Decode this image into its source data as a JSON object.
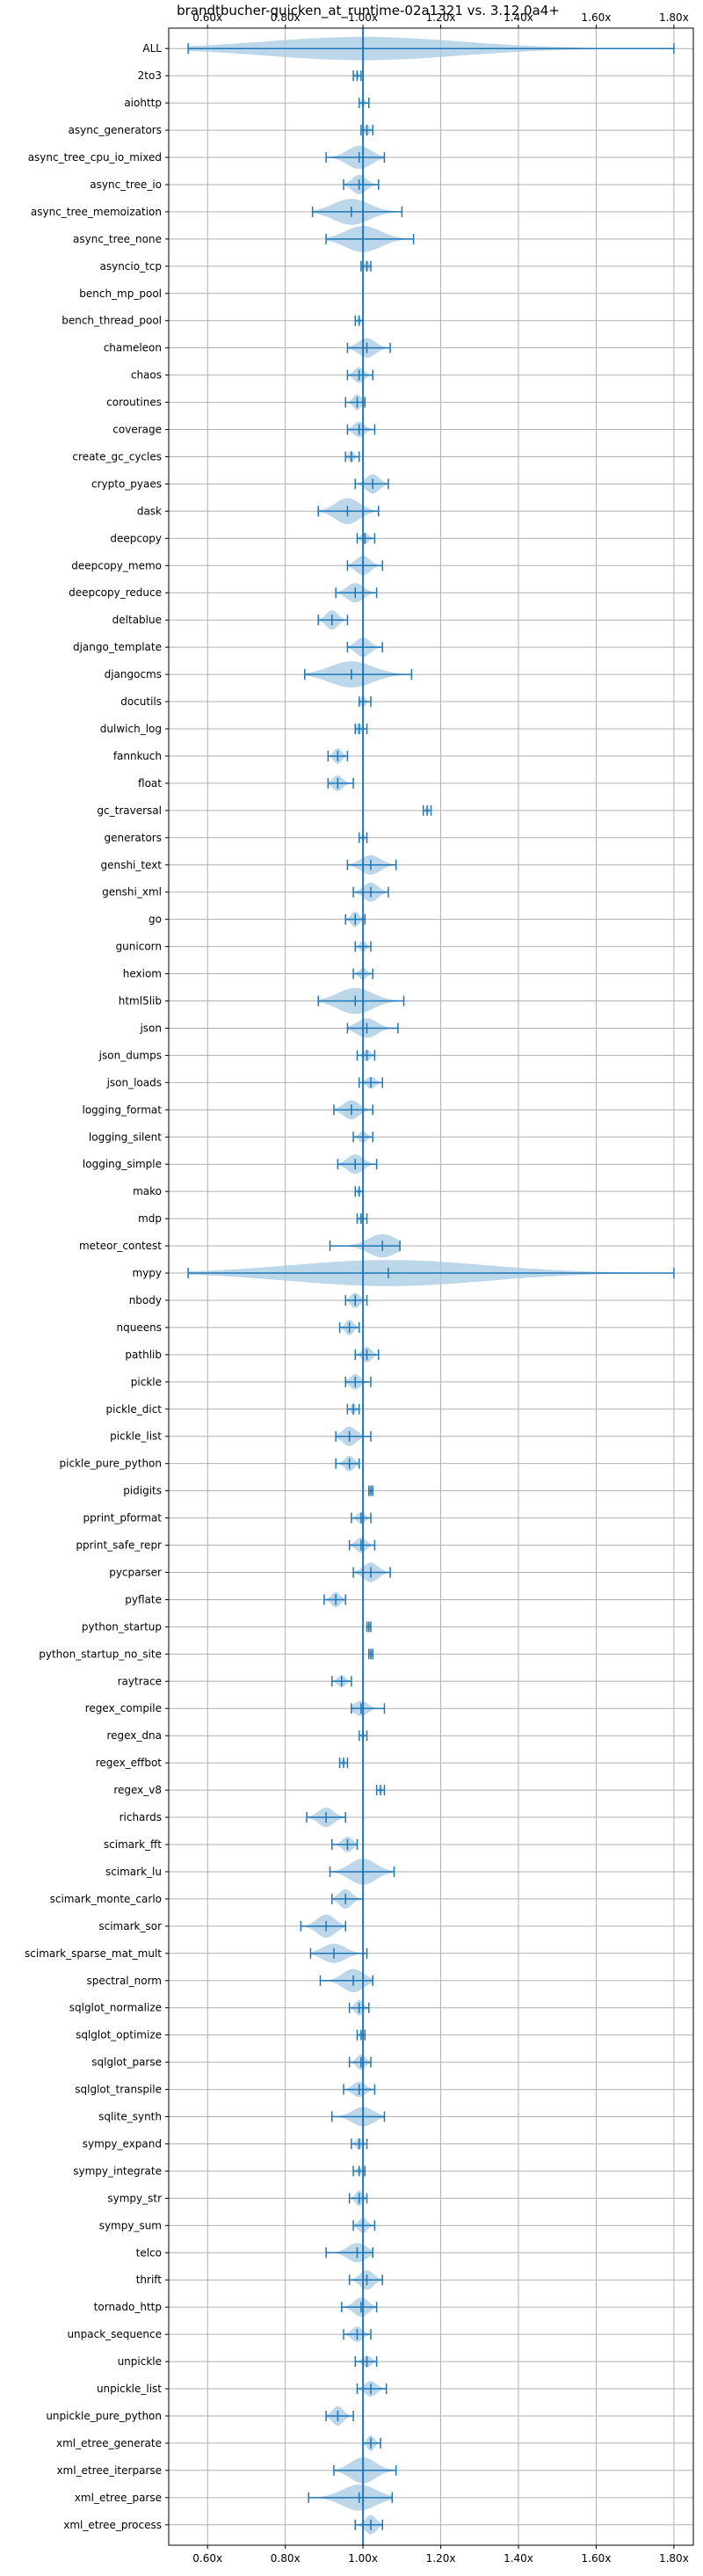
{
  "chart_data": {
    "type": "violin",
    "title": "brandtbucher-quicken_at_runtime-02a1321 vs. 3.12.0a4+",
    "xlabel": "",
    "ylabel": "",
    "xlim": [
      0.5,
      1.85
    ],
    "x_ticks": [
      0.6,
      0.8,
      1.0,
      1.2,
      1.4,
      1.6,
      1.8
    ],
    "x_tick_labels": [
      "0.60x",
      "0.80x",
      "1.00x",
      "1.20x",
      "1.40x",
      "1.60x",
      "1.80x"
    ],
    "reference_line": 1.0,
    "grid": true,
    "colors": {
      "fill": "#a6c8e3",
      "line": "#1f77b4",
      "grid": "#b0b0b0"
    },
    "benchmarks": [
      {
        "name": "ALL",
        "min": 0.55,
        "median": 1.0,
        "max": 1.8,
        "center": 1.0,
        "width": 0.06
      },
      {
        "name": "2to3",
        "min": 0.975,
        "median": 0.985,
        "max": 0.995,
        "center": 0.985,
        "width": 0.02
      },
      {
        "name": "aiohttp",
        "min": 0.99,
        "median": 1.0,
        "max": 1.015,
        "center": 1.0,
        "width": 0.02
      },
      {
        "name": "async_generators",
        "min": 0.995,
        "median": 1.01,
        "max": 1.025,
        "center": 1.01,
        "width": 0.03
      },
      {
        "name": "async_tree_cpu_io_mixed",
        "min": 0.905,
        "median": 0.99,
        "max": 1.055,
        "center": 0.99,
        "width": 0.06
      },
      {
        "name": "async_tree_io",
        "min": 0.95,
        "median": 0.99,
        "max": 1.04,
        "center": 0.99,
        "width": 0.05
      },
      {
        "name": "async_tree_memoization",
        "min": 0.87,
        "median": 0.97,
        "max": 1.1,
        "center": 0.97,
        "width": 0.08
      },
      {
        "name": "async_tree_none",
        "min": 0.905,
        "median": 1.0,
        "max": 1.13,
        "center": 1.0,
        "width": 0.09
      },
      {
        "name": "asyncio_tcp",
        "min": 0.995,
        "median": 1.01,
        "max": 1.02,
        "center": 1.01,
        "width": 0.03
      },
      {
        "name": "bench_mp_pool",
        "min": 1.0,
        "median": 1.0,
        "max": 1.0,
        "center": 1.0,
        "width": 0.0
      },
      {
        "name": "bench_thread_pool",
        "min": 0.98,
        "median": 0.99,
        "max": 1.0,
        "center": 0.99,
        "width": 0.02
      },
      {
        "name": "chameleon",
        "min": 0.96,
        "median": 1.01,
        "max": 1.07,
        "center": 1.01,
        "width": 0.05
      },
      {
        "name": "chaos",
        "min": 0.96,
        "median": 0.99,
        "max": 1.025,
        "center": 0.99,
        "width": 0.04
      },
      {
        "name": "coroutines",
        "min": 0.955,
        "median": 0.985,
        "max": 1.005,
        "center": 0.985,
        "width": 0.04
      },
      {
        "name": "coverage",
        "min": 0.96,
        "median": 0.99,
        "max": 1.03,
        "center": 0.99,
        "width": 0.04
      },
      {
        "name": "create_gc_cycles",
        "min": 0.955,
        "median": 0.97,
        "max": 0.99,
        "center": 0.97,
        "width": 0.03
      },
      {
        "name": "crypto_pyaes",
        "min": 0.98,
        "median": 1.025,
        "max": 1.065,
        "center": 1.025,
        "width": 0.05
      },
      {
        "name": "dask",
        "min": 0.885,
        "median": 0.96,
        "max": 1.04,
        "center": 0.96,
        "width": 0.07
      },
      {
        "name": "deepcopy",
        "min": 0.985,
        "median": 1.005,
        "max": 1.03,
        "center": 1.005,
        "width": 0.03
      },
      {
        "name": "deepcopy_memo",
        "min": 0.96,
        "median": 1.0,
        "max": 1.05,
        "center": 1.0,
        "width": 0.05
      },
      {
        "name": "deepcopy_reduce",
        "min": 0.93,
        "median": 0.98,
        "max": 1.035,
        "center": 0.98,
        "width": 0.05
      },
      {
        "name": "deltablue",
        "min": 0.885,
        "median": 0.92,
        "max": 0.96,
        "center": 0.92,
        "width": 0.05
      },
      {
        "name": "django_template",
        "min": 0.96,
        "median": 1.0,
        "max": 1.05,
        "center": 1.0,
        "width": 0.05
      },
      {
        "name": "djangocms",
        "min": 0.85,
        "median": 0.97,
        "max": 1.125,
        "center": 0.97,
        "width": 0.09
      },
      {
        "name": "docutils",
        "min": 0.99,
        "median": 1.0,
        "max": 1.02,
        "center": 1.0,
        "width": 0.03
      },
      {
        "name": "dulwich_log",
        "min": 0.98,
        "median": 0.99,
        "max": 1.01,
        "center": 0.99,
        "width": 0.03
      },
      {
        "name": "fannkuch",
        "min": 0.91,
        "median": 0.935,
        "max": 0.96,
        "center": 0.935,
        "width": 0.04
      },
      {
        "name": "float",
        "min": 0.91,
        "median": 0.935,
        "max": 0.975,
        "center": 0.935,
        "width": 0.04
      },
      {
        "name": "gc_traversal",
        "min": 1.155,
        "median": 1.165,
        "max": 1.175,
        "center": 1.165,
        "width": 0.02
      },
      {
        "name": "generators",
        "min": 0.99,
        "median": 1.0,
        "max": 1.01,
        "center": 1.0,
        "width": 0.02
      },
      {
        "name": "genshi_text",
        "min": 0.96,
        "median": 1.02,
        "max": 1.085,
        "center": 1.02,
        "width": 0.05
      },
      {
        "name": "genshi_xml",
        "min": 0.975,
        "median": 1.02,
        "max": 1.065,
        "center": 1.02,
        "width": 0.05
      },
      {
        "name": "go",
        "min": 0.955,
        "median": 0.98,
        "max": 1.005,
        "center": 0.98,
        "width": 0.04
      },
      {
        "name": "gunicorn",
        "min": 0.98,
        "median": 1.0,
        "max": 1.02,
        "center": 1.0,
        "width": 0.03
      },
      {
        "name": "hexiom",
        "min": 0.975,
        "median": 1.0,
        "max": 1.025,
        "center": 1.0,
        "width": 0.03
      },
      {
        "name": "html5lib",
        "min": 0.885,
        "median": 0.98,
        "max": 1.105,
        "center": 0.98,
        "width": 0.08
      },
      {
        "name": "json",
        "min": 0.96,
        "median": 1.01,
        "max": 1.09,
        "center": 1.01,
        "width": 0.05
      },
      {
        "name": "json_dumps",
        "min": 0.985,
        "median": 1.01,
        "max": 1.03,
        "center": 1.01,
        "width": 0.03
      },
      {
        "name": "json_loads",
        "min": 0.99,
        "median": 1.02,
        "max": 1.05,
        "center": 1.02,
        "width": 0.03
      },
      {
        "name": "logging_format",
        "min": 0.925,
        "median": 0.97,
        "max": 1.025,
        "center": 0.97,
        "width": 0.05
      },
      {
        "name": "logging_silent",
        "min": 0.975,
        "median": 1.0,
        "max": 1.025,
        "center": 1.0,
        "width": 0.03
      },
      {
        "name": "logging_simple",
        "min": 0.935,
        "median": 0.98,
        "max": 1.035,
        "center": 0.98,
        "width": 0.05
      },
      {
        "name": "mako",
        "min": 0.98,
        "median": 0.99,
        "max": 1.0,
        "center": 0.99,
        "width": 0.02
      },
      {
        "name": "mdp",
        "min": 0.985,
        "median": 0.995,
        "max": 1.01,
        "center": 0.995,
        "width": 0.02
      },
      {
        "name": "meteor_contest",
        "min": 0.915,
        "median": 1.05,
        "max": 1.095,
        "center": 1.05,
        "width": 0.06
      },
      {
        "name": "mypy",
        "min": 0.55,
        "median": 1.065,
        "max": 1.8,
        "center": 1.065,
        "width": 0.22
      },
      {
        "name": "nbody",
        "min": 0.955,
        "median": 0.98,
        "max": 1.01,
        "center": 0.98,
        "width": 0.04
      },
      {
        "name": "nqueens",
        "min": 0.94,
        "median": 0.965,
        "max": 0.99,
        "center": 0.965,
        "width": 0.04
      },
      {
        "name": "pathlib",
        "min": 0.98,
        "median": 1.01,
        "max": 1.04,
        "center": 1.01,
        "width": 0.04
      },
      {
        "name": "pickle",
        "min": 0.955,
        "median": 0.98,
        "max": 1.02,
        "center": 0.98,
        "width": 0.04
      },
      {
        "name": "pickle_dict",
        "min": 0.96,
        "median": 0.975,
        "max": 0.99,
        "center": 0.975,
        "width": 0.03
      },
      {
        "name": "pickle_list",
        "min": 0.93,
        "median": 0.965,
        "max": 1.02,
        "center": 0.965,
        "width": 0.05
      },
      {
        "name": "pickle_pure_python",
        "min": 0.93,
        "median": 0.965,
        "max": 0.99,
        "center": 0.965,
        "width": 0.04
      },
      {
        "name": "pidigits",
        "min": 1.015,
        "median": 1.02,
        "max": 1.025,
        "center": 1.02,
        "width": 0.01
      },
      {
        "name": "pprint_pformat",
        "min": 0.97,
        "median": 0.995,
        "max": 1.02,
        "center": 0.995,
        "width": 0.03
      },
      {
        "name": "pprint_safe_repr",
        "min": 0.965,
        "median": 0.995,
        "max": 1.03,
        "center": 0.995,
        "width": 0.04
      },
      {
        "name": "pycparser",
        "min": 0.975,
        "median": 1.02,
        "max": 1.07,
        "center": 1.02,
        "width": 0.05
      },
      {
        "name": "pyflate",
        "min": 0.9,
        "median": 0.93,
        "max": 0.955,
        "center": 0.93,
        "width": 0.04
      },
      {
        "name": "python_startup",
        "min": 1.01,
        "median": 1.015,
        "max": 1.02,
        "center": 1.015,
        "width": 0.01
      },
      {
        "name": "python_startup_no_site",
        "min": 1.015,
        "median": 1.02,
        "max": 1.025,
        "center": 1.02,
        "width": 0.01
      },
      {
        "name": "raytrace",
        "min": 0.92,
        "median": 0.945,
        "max": 0.97,
        "center": 0.945,
        "width": 0.03
      },
      {
        "name": "regex_compile",
        "min": 0.97,
        "median": 0.995,
        "max": 1.055,
        "center": 0.995,
        "width": 0.04
      },
      {
        "name": "regex_dna",
        "min": 0.99,
        "median": 1.0,
        "max": 1.01,
        "center": 1.0,
        "width": 0.02
      },
      {
        "name": "regex_effbot",
        "min": 0.94,
        "median": 0.95,
        "max": 0.96,
        "center": 0.95,
        "width": 0.015
      },
      {
        "name": "regex_v8",
        "min": 1.035,
        "median": 1.045,
        "max": 1.055,
        "center": 1.045,
        "width": 0.02
      },
      {
        "name": "richards",
        "min": 0.855,
        "median": 0.905,
        "max": 0.955,
        "center": 0.905,
        "width": 0.05
      },
      {
        "name": "scimark_fft",
        "min": 0.92,
        "median": 0.96,
        "max": 0.985,
        "center": 0.96,
        "width": 0.04
      },
      {
        "name": "scimark_lu",
        "min": 0.915,
        "median": 1.0,
        "max": 1.08,
        "center": 1.0,
        "width": 0.07
      },
      {
        "name": "scimark_monte_carlo",
        "min": 0.92,
        "median": 0.955,
        "max": 1.0,
        "center": 0.955,
        "width": 0.05
      },
      {
        "name": "scimark_sor",
        "min": 0.84,
        "median": 0.905,
        "max": 0.955,
        "center": 0.905,
        "width": 0.06
      },
      {
        "name": "scimark_sparse_mat_mult",
        "min": 0.865,
        "median": 0.925,
        "max": 1.01,
        "center": 0.925,
        "width": 0.05
      },
      {
        "name": "spectral_norm",
        "min": 0.89,
        "median": 0.975,
        "max": 1.025,
        "center": 0.975,
        "width": 0.06
      },
      {
        "name": "sqlglot_normalize",
        "min": 0.965,
        "median": 0.99,
        "max": 1.015,
        "center": 0.99,
        "width": 0.04
      },
      {
        "name": "sqlglot_optimize",
        "min": 0.985,
        "median": 0.995,
        "max": 1.005,
        "center": 0.995,
        "width": 0.02
      },
      {
        "name": "sqlglot_parse",
        "min": 0.965,
        "median": 0.995,
        "max": 1.02,
        "center": 0.995,
        "width": 0.04
      },
      {
        "name": "sqlglot_transpile",
        "min": 0.95,
        "median": 0.99,
        "max": 1.03,
        "center": 0.99,
        "width": 0.04
      },
      {
        "name": "sqlite_synth",
        "min": 0.92,
        "median": 1.0,
        "max": 1.055,
        "center": 1.0,
        "width": 0.05
      },
      {
        "name": "sympy_expand",
        "min": 0.97,
        "median": 0.99,
        "max": 1.01,
        "center": 0.99,
        "width": 0.03
      },
      {
        "name": "sympy_integrate",
        "min": 0.975,
        "median": 0.99,
        "max": 1.005,
        "center": 0.99,
        "width": 0.02
      },
      {
        "name": "sympy_str",
        "min": 0.965,
        "median": 0.99,
        "max": 1.01,
        "center": 0.99,
        "width": 0.04
      },
      {
        "name": "sympy_sum",
        "min": 0.975,
        "median": 1.0,
        "max": 1.03,
        "center": 1.0,
        "width": 0.04
      },
      {
        "name": "telco",
        "min": 0.905,
        "median": 0.985,
        "max": 1.025,
        "center": 0.985,
        "width": 0.05
      },
      {
        "name": "thrift",
        "min": 0.965,
        "median": 1.01,
        "max": 1.05,
        "center": 1.01,
        "width": 0.05
      },
      {
        "name": "tornado_http",
        "min": 0.945,
        "median": 0.995,
        "max": 1.035,
        "center": 0.995,
        "width": 0.05
      },
      {
        "name": "unpack_sequence",
        "min": 0.95,
        "median": 0.985,
        "max": 1.02,
        "center": 0.985,
        "width": 0.04
      },
      {
        "name": "unpickle",
        "min": 0.98,
        "median": 1.01,
        "max": 1.035,
        "center": 1.01,
        "width": 0.03
      },
      {
        "name": "unpickle_list",
        "min": 0.985,
        "median": 1.02,
        "max": 1.06,
        "center": 1.02,
        "width": 0.04
      },
      {
        "name": "unpickle_pure_python",
        "min": 0.905,
        "median": 0.935,
        "max": 0.975,
        "center": 0.935,
        "width": 0.05
      },
      {
        "name": "xml_etree_generate",
        "min": 1.0,
        "median": 1.02,
        "max": 1.045,
        "center": 1.02,
        "width": 0.04
      },
      {
        "name": "xml_etree_iterparse",
        "min": 0.925,
        "median": 1.0,
        "max": 1.085,
        "center": 1.0,
        "width": 0.07
      },
      {
        "name": "xml_etree_parse",
        "min": 0.86,
        "median": 0.99,
        "max": 1.075,
        "center": 0.99,
        "width": 0.07
      },
      {
        "name": "xml_etree_process",
        "min": 0.98,
        "median": 1.02,
        "max": 1.05,
        "center": 1.02,
        "width": 0.05
      }
    ]
  }
}
